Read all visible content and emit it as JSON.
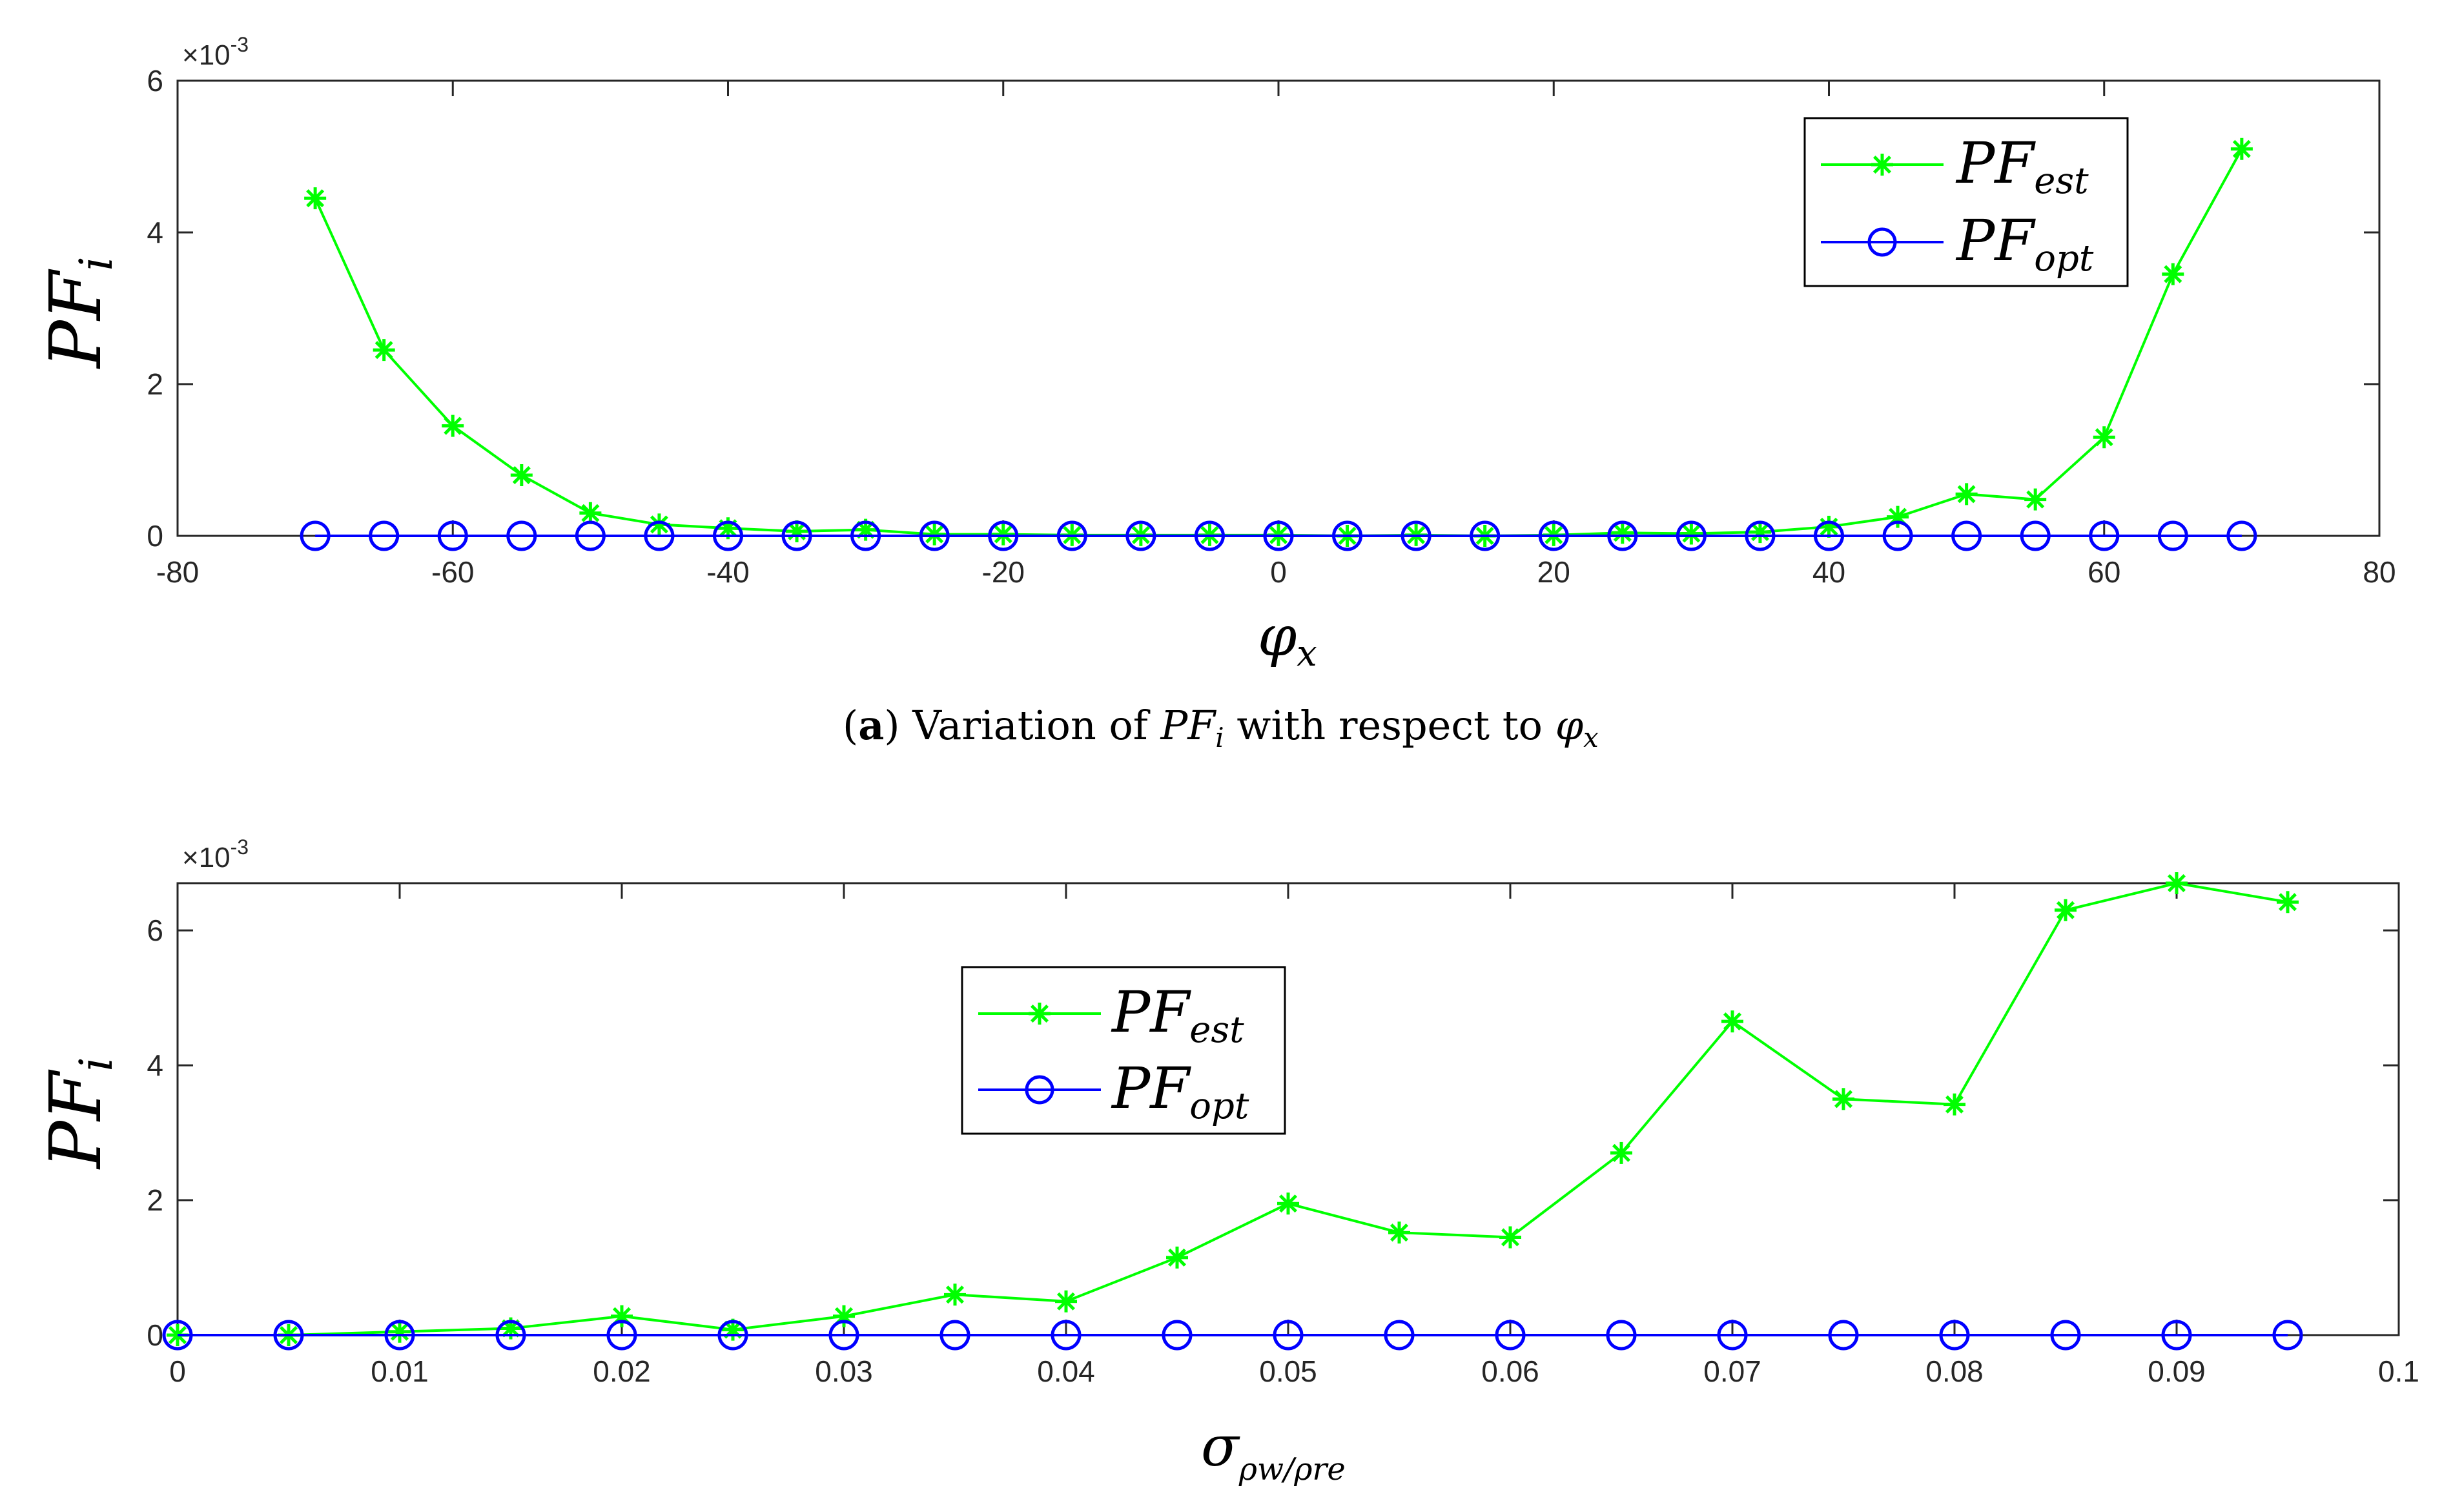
{
  "chart_data": [
    {
      "type": "line",
      "panel": "a",
      "caption": {
        "letter": "a",
        "text": "Variation of",
        "mid": "with respect to",
        "var1": "PF",
        "var1_sub": "i",
        "var2": "φ",
        "var2_sub": "x"
      },
      "exponent_label": "×10",
      "exponent_power": "-3",
      "ylabel": "PF",
      "ylabel_sub": "i",
      "xlabel": "φ",
      "xlabel_sub": "x",
      "xlim": [
        -80,
        80
      ],
      "ylim": [
        0,
        6
      ],
      "xticks": [
        -80,
        -60,
        -40,
        -20,
        0,
        20,
        40,
        60,
        80
      ],
      "xtick_labels": [
        "-80",
        "-60",
        "-40",
        "-20",
        "0",
        "20",
        "40",
        "60",
        "80"
      ],
      "yticks": [
        0,
        2,
        4,
        6
      ],
      "ytick_labels": [
        "0",
        "2",
        "4",
        "6"
      ],
      "legend_position": "top-right",
      "x": [
        -70,
        -65,
        -60,
        -55,
        -50,
        -45,
        -40,
        -35,
        -30,
        -25,
        -20,
        -15,
        -10,
        -5,
        0,
        5,
        10,
        15,
        20,
        25,
        30,
        35,
        40,
        45,
        50,
        55,
        60,
        65,
        70
      ],
      "series": [
        {
          "name": "PF",
          "name_sub": "est",
          "color": "#00ff00",
          "marker": "asterisk",
          "values": [
            4.45,
            2.45,
            1.45,
            0.8,
            0.3,
            0.15,
            0.1,
            0.06,
            0.08,
            0.02,
            0.02,
            0.01,
            0.01,
            0.01,
            0.01,
            0.0,
            0.01,
            0.0,
            0.01,
            0.04,
            0.03,
            0.05,
            0.12,
            0.25,
            0.55,
            0.48,
            1.3,
            3.45,
            5.1
          ]
        },
        {
          "name": "PF",
          "name_sub": "opt",
          "color": "#0000ff",
          "marker": "circle",
          "values": [
            0,
            0,
            0,
            0,
            0,
            0,
            0,
            0,
            0,
            0,
            0,
            0,
            0,
            0,
            0,
            0,
            0,
            0,
            0,
            0,
            0,
            0,
            0,
            0,
            0,
            0,
            0,
            0,
            0
          ]
        }
      ]
    },
    {
      "type": "line",
      "panel": "b",
      "exponent_label": "×10",
      "exponent_power": "-3",
      "ylabel": "PF",
      "ylabel_sub": "i",
      "xlabel": "σ",
      "xlabel_sub": "ρw/ρre",
      "xlim": [
        0,
        0.1
      ],
      "ylim": [
        0,
        6.7
      ],
      "xticks": [
        0,
        0.01,
        0.02,
        0.03,
        0.04,
        0.05,
        0.06,
        0.07,
        0.08,
        0.09,
        0.1
      ],
      "xtick_labels": [
        "0",
        "0.01",
        "0.02",
        "0.03",
        "0.04",
        "0.05",
        "0.06",
        "0.07",
        "0.08",
        "0.09",
        "0.1"
      ],
      "yticks": [
        0,
        2,
        4,
        6
      ],
      "ytick_labels": [
        "0",
        "2",
        "4",
        "6"
      ],
      "legend_position": "top-left",
      "x": [
        0,
        0.005,
        0.01,
        0.015,
        0.02,
        0.025,
        0.03,
        0.035,
        0.04,
        0.045,
        0.05,
        0.055,
        0.06,
        0.065,
        0.07,
        0.075,
        0.08,
        0.085,
        0.09,
        0.095
      ],
      "series": [
        {
          "name": "PF",
          "name_sub": "est",
          "color": "#00ff00",
          "marker": "asterisk",
          "values": [
            0,
            0,
            0.05,
            0.1,
            0.28,
            0.08,
            0.28,
            0.6,
            0.5,
            1.15,
            1.95,
            1.52,
            1.45,
            2.7,
            4.65,
            3.5,
            3.42,
            6.3,
            6.7,
            6.42
          ]
        },
        {
          "name": "PF",
          "name_sub": "opt",
          "color": "#0000ff",
          "marker": "circle",
          "values": [
            0,
            0,
            0,
            0,
            0,
            0,
            0,
            0,
            0,
            0,
            0,
            0,
            0,
            0,
            0,
            0,
            0,
            0,
            0,
            0
          ]
        }
      ]
    }
  ]
}
